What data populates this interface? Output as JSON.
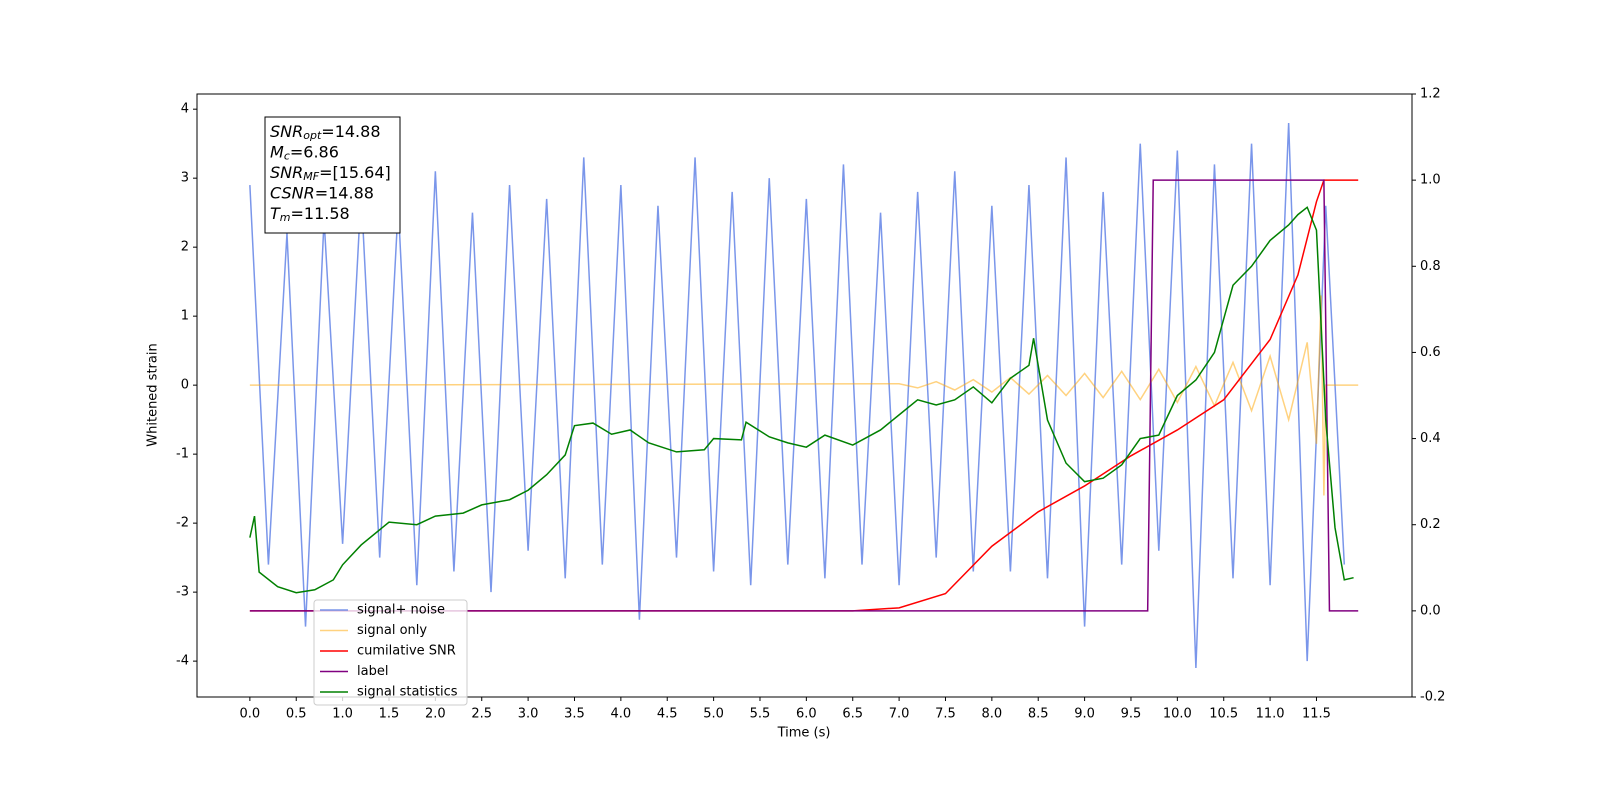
{
  "chart_data": {
    "type": "line",
    "xlabel": "Time (s)",
    "ylabel": "Whitened strain",
    "xlim": [
      -0.57,
      12.53
    ],
    "xticks": [
      {
        "value": 0,
        "label": "0.0"
      },
      0.5,
      {
        "value": 1,
        "label": "1.0"
      },
      1.5,
      {
        "value": 2,
        "label": "2.0"
      },
      2.5,
      {
        "value": 3,
        "label": "3.0"
      },
      3.5,
      {
        "value": 4,
        "label": "4.0"
      },
      4.5,
      {
        "value": 5,
        "label": "5.0"
      },
      5.5,
      {
        "value": 6,
        "label": "6.0"
      },
      6.5,
      {
        "value": 7,
        "label": "7.0"
      },
      7.5,
      {
        "value": 8,
        "label": "8.0"
      },
      8.5,
      {
        "value": 9,
        "label": "9.0"
      },
      9.5,
      {
        "value": 10,
        "label": "10.0"
      },
      10.5,
      {
        "value": 11,
        "label": "11.0"
      },
      11.5
    ],
    "ylim": [
      -4.52,
      4.22
    ],
    "yticks": [
      -4,
      -3,
      -2,
      -1,
      0,
      1,
      2,
      3,
      4
    ],
    "y2lim": [
      -0.2,
      1.2
    ],
    "y2ticks": [
      -0.2,
      {
        "value": 0,
        "label": "0.0"
      },
      0.2,
      0.4,
      0.6,
      0.8,
      {
        "value": 1,
        "label": "1.0"
      },
      1.2
    ],
    "grid": false,
    "legend": "lower left",
    "annotations": [
      {
        "symbol": "SNR",
        "sub": "opt",
        "text": "=14.88"
      },
      {
        "symbol": "M",
        "sub": "c",
        "text": "=6.86"
      },
      {
        "symbol": "SNR",
        "sub": "MF",
        "text": "=[15.64]"
      },
      {
        "symbol": "CSNR",
        "text": "=14.88"
      },
      {
        "symbol": "T",
        "sub": "m",
        "text": "=11.58"
      }
    ],
    "series": [
      {
        "name": "signal+ noise",
        "color": "#4169e1",
        "opacity": 0.7,
        "x": [
          0.0,
          0.2,
          0.4,
          0.6,
          0.8,
          1.0,
          1.2,
          1.4,
          1.6,
          1.8,
          2.0,
          2.2,
          2.4,
          2.6,
          2.8,
          3.0,
          3.2,
          3.4,
          3.6,
          3.8,
          4.0,
          4.2,
          4.4,
          4.6,
          4.8,
          5.0,
          5.2,
          5.4,
          5.6,
          5.8,
          6.0,
          6.2,
          6.4,
          6.6,
          6.8,
          7.0,
          7.2,
          7.4,
          7.6,
          7.8,
          8.0,
          8.2,
          8.4,
          8.6,
          8.8,
          9.0,
          9.2,
          9.4,
          9.6,
          9.8,
          10.0,
          10.2,
          10.4,
          10.6,
          10.8,
          11.0,
          11.2,
          11.4,
          11.6,
          11.8
        ],
        "values": [
          2.9,
          -2.6,
          2.2,
          -3.5,
          2.4,
          -2.3,
          2.8,
          -2.5,
          2.6,
          -2.9,
          3.1,
          -2.7,
          2.5,
          -3.0,
          2.9,
          -2.4,
          2.7,
          -2.8,
          3.3,
          -2.6,
          2.9,
          -3.4,
          2.6,
          -2.5,
          3.3,
          -2.7,
          2.8,
          -2.9,
          3.0,
          -2.6,
          2.7,
          -2.8,
          3.2,
          -2.6,
          2.5,
          -2.9,
          2.8,
          -2.5,
          3.1,
          -2.7,
          2.6,
          -2.7,
          2.9,
          -2.8,
          3.3,
          -3.5,
          2.8,
          -2.6,
          3.5,
          -2.4,
          3.4,
          -4.1,
          3.2,
          -2.8,
          3.5,
          -2.9,
          3.8,
          -4.0,
          2.6,
          -2.6
        ]
      },
      {
        "name": "signal only",
        "color": "#ffa500",
        "opacity": 0.5,
        "x": [
          0.0,
          7.0,
          7.2,
          7.4,
          7.6,
          7.8,
          8.0,
          8.2,
          8.4,
          8.6,
          8.8,
          9.0,
          9.2,
          9.4,
          9.6,
          9.8,
          10.0,
          10.2,
          10.4,
          10.6,
          10.8,
          11.0,
          11.2,
          11.4,
          11.5,
          11.55,
          11.58,
          11.6,
          11.95
        ],
        "values": [
          0,
          0.02,
          -0.04,
          0.05,
          -0.07,
          0.08,
          -0.1,
          0.11,
          -0.13,
          0.14,
          -0.15,
          0.17,
          -0.18,
          0.2,
          -0.21,
          0.23,
          -0.25,
          0.27,
          -0.3,
          0.33,
          -0.37,
          0.42,
          -0.5,
          0.62,
          -0.85,
          1.3,
          -1.6,
          0,
          0
        ]
      },
      {
        "name": "cumilative SNR",
        "color": "#ff0000",
        "axis": "y2",
        "x": [
          0.0,
          6.5,
          7.0,
          7.5,
          8.0,
          8.5,
          9.0,
          9.5,
          10.0,
          10.5,
          11.0,
          11.3,
          11.5,
          11.58,
          11.95
        ],
        "values": [
          0,
          0,
          0.007,
          0.04,
          0.15,
          0.23,
          0.29,
          0.36,
          0.42,
          0.49,
          0.63,
          0.78,
          0.95,
          1.0,
          1.0
        ]
      },
      {
        "name": "label",
        "color": "#800080",
        "axis": "y2",
        "x": [
          0.0,
          9.68,
          9.74,
          11.58,
          11.64,
          11.95
        ],
        "values": [
          0,
          0,
          1,
          1,
          0,
          0
        ]
      },
      {
        "name": "signal statistics",
        "color": "#008000",
        "axis": "y2",
        "x": [
          0.0,
          0.05,
          0.1,
          0.3,
          0.5,
          0.7,
          0.9,
          1.0,
          1.2,
          1.5,
          1.8,
          2.0,
          2.3,
          2.5,
          2.8,
          3.0,
          3.2,
          3.4,
          3.5,
          3.7,
          3.9,
          4.1,
          4.3,
          4.6,
          4.9,
          5.0,
          5.3,
          5.35,
          5.6,
          5.8,
          6.0,
          6.2,
          6.5,
          6.8,
          7.0,
          7.2,
          7.4,
          7.6,
          7.8,
          8.0,
          8.2,
          8.4,
          8.45,
          8.6,
          8.8,
          9.0,
          9.2,
          9.4,
          9.6,
          9.8,
          10.0,
          10.2,
          10.4,
          10.6,
          10.8,
          11.0,
          11.2,
          11.3,
          11.4,
          11.5,
          11.6,
          11.7,
          11.8,
          11.9
        ],
        "values": [
          0.17,
          0.22,
          0.09,
          0.056,
          0.042,
          0.049,
          0.072,
          0.107,
          0.153,
          0.206,
          0.2,
          0.22,
          0.227,
          0.246,
          0.258,
          0.28,
          0.316,
          0.362,
          0.43,
          0.436,
          0.41,
          0.42,
          0.39,
          0.369,
          0.374,
          0.4,
          0.397,
          0.438,
          0.404,
          0.39,
          0.38,
          0.408,
          0.385,
          0.42,
          0.455,
          0.49,
          0.478,
          0.49,
          0.52,
          0.483,
          0.54,
          0.57,
          0.633,
          0.443,
          0.343,
          0.3,
          0.308,
          0.339,
          0.4,
          0.408,
          0.5,
          0.536,
          0.6,
          0.756,
          0.8,
          0.86,
          0.896,
          0.92,
          0.937,
          0.884,
          0.443,
          0.193,
          0.072,
          0.077
        ]
      }
    ]
  }
}
